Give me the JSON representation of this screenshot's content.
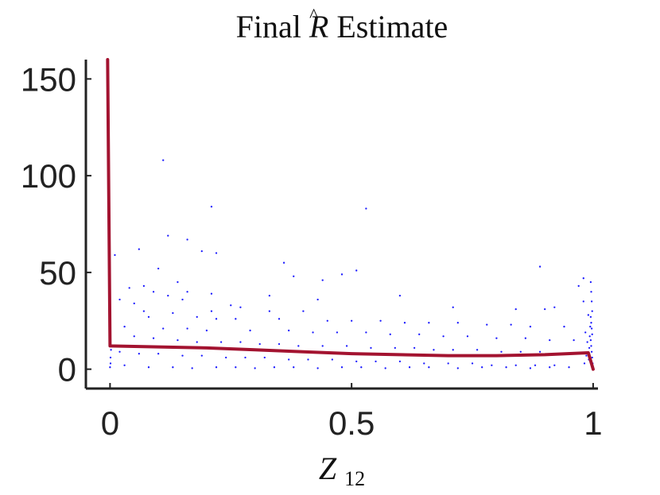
{
  "chart_data": {
    "type": "scatter",
    "title": "Final R̂ Estimate",
    "title_parts": {
      "before": "Final ",
      "symbol": "R",
      "after": " Estimate"
    },
    "xlabel": "Z",
    "xlabel_sub": "12",
    "ylabel": "",
    "xlim": [
      -0.05,
      1.01
    ],
    "ylim": [
      -10,
      160
    ],
    "xticks": [
      {
        "value": 0,
        "label": "0"
      },
      {
        "value": 0.5,
        "label": "0.5"
      },
      {
        "value": 1,
        "label": "1"
      }
    ],
    "yticks": [
      {
        "value": 0,
        "label": "0"
      },
      {
        "value": 50,
        "label": "50"
      },
      {
        "value": 100,
        "label": "100"
      },
      {
        "value": 150,
        "label": "150"
      }
    ],
    "grid": false,
    "legend": "none",
    "series": [
      {
        "kind": "scatter",
        "color": "#1a1aff",
        "points": [
          [
            0.11,
            108
          ],
          [
            0.21,
            84
          ],
          [
            0.53,
            83
          ],
          [
            0.12,
            69
          ],
          [
            0.16,
            67
          ],
          [
            0.06,
            62
          ],
          [
            0.19,
            61
          ],
          [
            0.22,
            60
          ],
          [
            0.01,
            59
          ],
          [
            0.36,
            55
          ],
          [
            0.89,
            53
          ],
          [
            0.1,
            52
          ],
          [
            0.51,
            51
          ],
          [
            0.48,
            49
          ],
          [
            0.38,
            48
          ],
          [
            0.44,
            46
          ],
          [
            0.14,
            45
          ],
          [
            0.98,
            47
          ],
          [
            0.97,
            43
          ],
          [
            0.07,
            43
          ],
          [
            0.04,
            42
          ],
          [
            0.09,
            40
          ],
          [
            0.16,
            40
          ],
          [
            0.21,
            39
          ],
          [
            0.33,
            38
          ],
          [
            0.6,
            38
          ],
          [
            0.12,
            38
          ],
          [
            0.02,
            36
          ],
          [
            0.15,
            36
          ],
          [
            0.43,
            36
          ],
          [
            0.98,
            35
          ],
          [
            0.05,
            34
          ],
          [
            0.25,
            33
          ],
          [
            0.27,
            32
          ],
          [
            0.71,
            32
          ],
          [
            0.84,
            31
          ],
          [
            0.9,
            31
          ],
          [
            0.92,
            32
          ],
          [
            0.07,
            30
          ],
          [
            0.13,
            29
          ],
          [
            0.21,
            30
          ],
          [
            0.33,
            30
          ],
          [
            0.4,
            30
          ],
          [
            0.08,
            27
          ],
          [
            0.18,
            27
          ],
          [
            0.22,
            26
          ],
          [
            0.26,
            26
          ],
          [
            0.35,
            26
          ],
          [
            0.45,
            25
          ],
          [
            0.5,
            25
          ],
          [
            0.56,
            25
          ],
          [
            0.61,
            24
          ],
          [
            0.66,
            24
          ],
          [
            0.72,
            24
          ],
          [
            0.78,
            23
          ],
          [
            0.83,
            23
          ],
          [
            0.87,
            22
          ],
          [
            0.94,
            22
          ],
          [
            0.03,
            22
          ],
          [
            0.11,
            21
          ],
          [
            0.16,
            21
          ],
          [
            0.2,
            20
          ],
          [
            0.29,
            20
          ],
          [
            0.37,
            20
          ],
          [
            0.42,
            19
          ],
          [
            0.47,
            19
          ],
          [
            0.53,
            19
          ],
          [
            0.58,
            18
          ],
          [
            0.64,
            18
          ],
          [
            0.69,
            17
          ],
          [
            0.74,
            17
          ],
          [
            0.8,
            16
          ],
          [
            0.86,
            16
          ],
          [
            0.91,
            15
          ],
          [
            0.96,
            15
          ],
          [
            0.05,
            17
          ],
          [
            0.09,
            16
          ],
          [
            0.14,
            15
          ],
          [
            0.18,
            14
          ],
          [
            0.23,
            14
          ],
          [
            0.27,
            14
          ],
          [
            0.31,
            13
          ],
          [
            0.35,
            13
          ],
          [
            0.39,
            12
          ],
          [
            0.44,
            12
          ],
          [
            0.49,
            12
          ],
          [
            0.54,
            11
          ],
          [
            0.59,
            11
          ],
          [
            0.63,
            11
          ],
          [
            0.67,
            10
          ],
          [
            0.71,
            10
          ],
          [
            0.76,
            10
          ],
          [
            0.81,
            9
          ],
          [
            0.85,
            9
          ],
          [
            0.89,
            9
          ],
          [
            0.93,
            8
          ],
          [
            0.02,
            9
          ],
          [
            0.06,
            8
          ],
          [
            0.1,
            8
          ],
          [
            0.15,
            7
          ],
          [
            0.19,
            7
          ],
          [
            0.24,
            6
          ],
          [
            0.28,
            6
          ],
          [
            0.32,
            6
          ],
          [
            0.37,
            5
          ],
          [
            0.41,
            5
          ],
          [
            0.46,
            5
          ],
          [
            0.51,
            4
          ],
          [
            0.55,
            4
          ],
          [
            0.6,
            4
          ],
          [
            0.65,
            3
          ],
          [
            0.7,
            3
          ],
          [
            0.75,
            3
          ],
          [
            0.79,
            2
          ],
          [
            0.84,
            2
          ],
          [
            0.88,
            2
          ],
          [
            0.92,
            2
          ],
          [
            0.95,
            1
          ],
          [
            0.03,
            2
          ],
          [
            0.08,
            1
          ],
          [
            0.13,
            1
          ],
          [
            0.17,
            0.5
          ],
          [
            0.22,
            1
          ],
          [
            0.26,
            1
          ],
          [
            0.3,
            0.5
          ],
          [
            0.34,
            1
          ],
          [
            0.38,
            1
          ],
          [
            0.43,
            0.5
          ],
          [
            0.48,
            1
          ],
          [
            0.52,
            1
          ],
          [
            0.57,
            0.5
          ],
          [
            0.62,
            1
          ],
          [
            0.66,
            1
          ],
          [
            0.72,
            0.5
          ],
          [
            0.77,
            1
          ],
          [
            0.82,
            1
          ],
          [
            0.87,
            0.5
          ],
          [
            0.91,
            1
          ],
          [
            0.995,
            45
          ],
          [
            0.996,
            40
          ],
          [
            0.997,
            35
          ],
          [
            0.998,
            30
          ],
          [
            0.995,
            27
          ],
          [
            0.996,
            24
          ],
          [
            0.997,
            21
          ],
          [
            0.998,
            18
          ],
          [
            0.995,
            15
          ],
          [
            0.996,
            12
          ],
          [
            0.997,
            9
          ],
          [
            0.998,
            6
          ],
          [
            0.999,
            3
          ],
          [
            0.999,
            1
          ],
          [
            0.994,
            22
          ],
          [
            0.993,
            17
          ],
          [
            0.992,
            11
          ],
          [
            0.991,
            5
          ],
          [
            0.99,
            28
          ],
          [
            0.988,
            14
          ],
          [
            0.986,
            7
          ],
          [
            0.984,
            19
          ],
          [
            0.982,
            3
          ],
          [
            0.0,
            1
          ],
          [
            0.001,
            3
          ],
          [
            0.001,
            6
          ],
          [
            0.002,
            10
          ]
        ]
      },
      {
        "kind": "line",
        "color": "#a31330",
        "points": [
          [
            -0.005,
            160
          ],
          [
            0.0,
            12
          ],
          [
            0.1,
            11.5
          ],
          [
            0.2,
            11
          ],
          [
            0.3,
            10
          ],
          [
            0.4,
            9
          ],
          [
            0.5,
            8
          ],
          [
            0.6,
            7.5
          ],
          [
            0.7,
            7
          ],
          [
            0.8,
            7
          ],
          [
            0.9,
            7.5
          ],
          [
            0.99,
            8.5
          ],
          [
            1.0,
            0
          ]
        ]
      }
    ]
  }
}
